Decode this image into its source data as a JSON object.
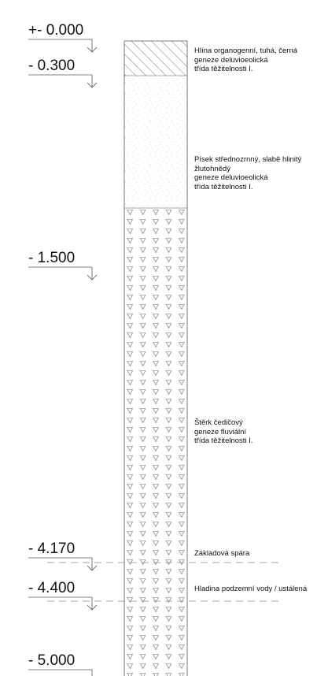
{
  "levels": [
    {
      "label": "+- 0.000",
      "depth": 0.0
    },
    {
      "label": "- 0.300",
      "depth": 0.3
    },
    {
      "label": "- 1.500",
      "depth": 1.5
    },
    {
      "label": "- 4.170",
      "depth": 4.17
    },
    {
      "label": "- 4.400",
      "depth": 4.4
    },
    {
      "label": "- 5.000",
      "depth": 5.0
    }
  ],
  "layers": [
    {
      "from": 0.0,
      "to": 0.3,
      "pattern": "hatch",
      "lines": [
        "Hlína organogenní, tuhá, černá",
        "geneze deluvioeolická",
        "třída těžitelnosti I."
      ]
    },
    {
      "from": 0.3,
      "to": 1.5,
      "pattern": "sand",
      "lines": [
        "Písek střednozrnný, slabě hlinitý",
        "žlutohnědý",
        "geneze deluvioeolická",
        "třída těžitelnosti I."
      ]
    },
    {
      "from": 1.5,
      "to": 5.0,
      "pattern": "gravel",
      "lines": [
        "Štěrk čedičový",
        "geneze fluviální",
        "třída těžitelnosti I."
      ]
    }
  ],
  "notes": [
    {
      "text": "Základová spára",
      "depth": 4.17
    },
    {
      "text": "Hladina podzemní vody / ustálená",
      "depth": 4.4
    }
  ],
  "colors": {
    "line": "#555555",
    "hatch": "#777777",
    "sand": "#b5b5b5",
    "text": "#111111"
  }
}
